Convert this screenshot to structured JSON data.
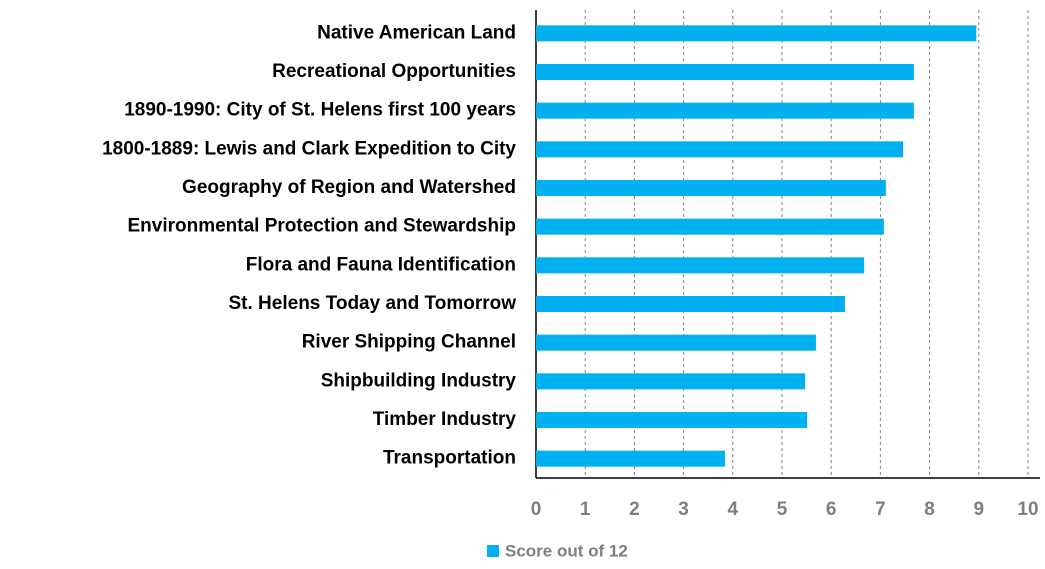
{
  "chart_data": {
    "type": "bar",
    "orientation": "horizontal",
    "categories": [
      "Native American Land",
      "Recreational Opportunities",
      "1890-1990: City of St. Helens first 100 years",
      "1800-1889: Lewis and Clark Expedition to City",
      "Geography of Region and Watershed",
      "Environmental Protection and Stewardship",
      "Flora and Fauna Identification",
      "St. Helens Today and Tomorrow",
      "River Shipping Channel",
      "Shipbuilding Industry",
      "Timber Industry",
      "Transportation"
    ],
    "series": [
      {
        "name": "Score out of 12",
        "color": "#00b0f0",
        "values": [
          8.95,
          7.68,
          7.68,
          7.46,
          7.11,
          7.07,
          6.67,
          6.28,
          5.69,
          5.47,
          5.51,
          3.84
        ]
      }
    ],
    "xlim": [
      0,
      10
    ],
    "xticks": [
      0,
      1,
      2,
      3,
      4,
      5,
      6,
      7,
      8,
      9,
      10
    ],
    "grid": true,
    "legend": "bottom"
  }
}
